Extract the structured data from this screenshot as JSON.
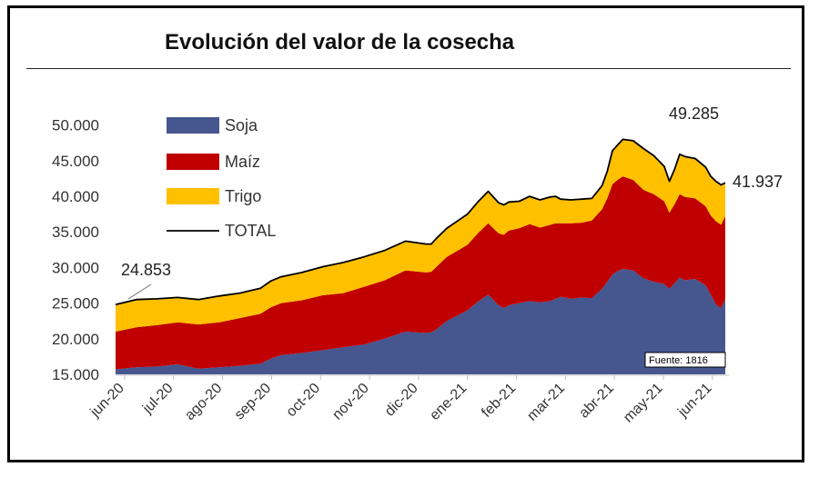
{
  "chart_data": {
    "type": "area",
    "title": "Evolución del valor de la cosecha",
    "xlabel": "",
    "ylabel": "",
    "ylim": [
      15000,
      52000
    ],
    "y_ticks": [
      "15.000",
      "20.000",
      "25.000",
      "30.000",
      "35.000",
      "40.000",
      "45.000",
      "50.000"
    ],
    "y_tick_values": [
      15000,
      20000,
      25000,
      30000,
      35000,
      40000,
      45000,
      50000
    ],
    "categories": [
      "jun-20",
      "jul-20",
      "ago-20",
      "sep-20",
      "oct-20",
      "nov-20",
      "dic-20",
      "ene-21",
      "feb-21",
      "mar-21",
      "abr-21",
      "may-21",
      "jun-21"
    ],
    "x": [
      0,
      4,
      8,
      12,
      16,
      20,
      24,
      28,
      30,
      32,
      36,
      40,
      44,
      48,
      52,
      56,
      60,
      61,
      62,
      64,
      68,
      70,
      72,
      74,
      75,
      76,
      78,
      80,
      82,
      84,
      85,
      86,
      88,
      90,
      92,
      94,
      95,
      96,
      97,
      98,
      100,
      102,
      104,
      106,
      107,
      108,
      109,
      110,
      112,
      114,
      115,
      116,
      117,
      117.8
    ],
    "series": [
      {
        "name": "Soja",
        "color": "#46568F",
        "values": [
          15700,
          16000,
          16100,
          16400,
          15800,
          16000,
          16200,
          16500,
          17200,
          17700,
          18000,
          18400,
          18800,
          19200,
          20000,
          21000,
          20800,
          20900,
          21300,
          22500,
          24000,
          25200,
          26200,
          24700,
          24300,
          24700,
          25000,
          25300,
          25100,
          25300,
          25600,
          25900,
          25600,
          25800,
          25700,
          27000,
          28000,
          29000,
          29500,
          29800,
          29600,
          28500,
          28000,
          27700,
          27000,
          27800,
          28600,
          28200,
          28400,
          27500,
          26200,
          24800,
          24300,
          25600
        ]
      },
      {
        "name": "Maíz",
        "color": "#C00000",
        "values": [
          5300,
          5600,
          5800,
          5900,
          6200,
          6300,
          6700,
          7000,
          7200,
          7300,
          7400,
          7700,
          7600,
          8100,
          8200,
          8600,
          8500,
          8500,
          8800,
          9000,
          9200,
          9600,
          10000,
          10100,
          10300,
          10500,
          10500,
          10800,
          10500,
          10700,
          10600,
          10300,
          10600,
          10500,
          10900,
          11200,
          11700,
          12700,
          12800,
          13000,
          12700,
          12400,
          12300,
          11600,
          10700,
          11100,
          11700,
          11700,
          11300,
          11100,
          11100,
          11700,
          11700,
          11600
        ]
      },
      {
        "name": "Trigo",
        "color": "#FFC000",
        "values": [
          3800,
          3900,
          3700,
          3500,
          3500,
          3700,
          3500,
          3600,
          3700,
          3700,
          3900,
          4000,
          4300,
          4200,
          4200,
          4100,
          4000,
          3900,
          4000,
          4000,
          4300,
          4400,
          4500,
          4300,
          4200,
          4000,
          3800,
          3900,
          3900,
          3900,
          3800,
          3400,
          3300,
          3300,
          3100,
          3300,
          3800,
          4700,
          4900,
          5200,
          5500,
          5800,
          5400,
          4900,
          4400,
          4900,
          5600,
          5700,
          5600,
          5500,
          5500,
          5600,
          5600,
          4700
        ]
      }
    ],
    "total_series_name": "TOTAL",
    "annotations": [
      {
        "text": "24.853",
        "x": 0,
        "value": 24853
      },
      {
        "text": "49.285",
        "x": 98,
        "value": 49285
      },
      {
        "text": "41.937",
        "x": 117.8,
        "value": 41937
      }
    ],
    "legend_position": "top-left",
    "source_note": "Fuente: 1816"
  }
}
